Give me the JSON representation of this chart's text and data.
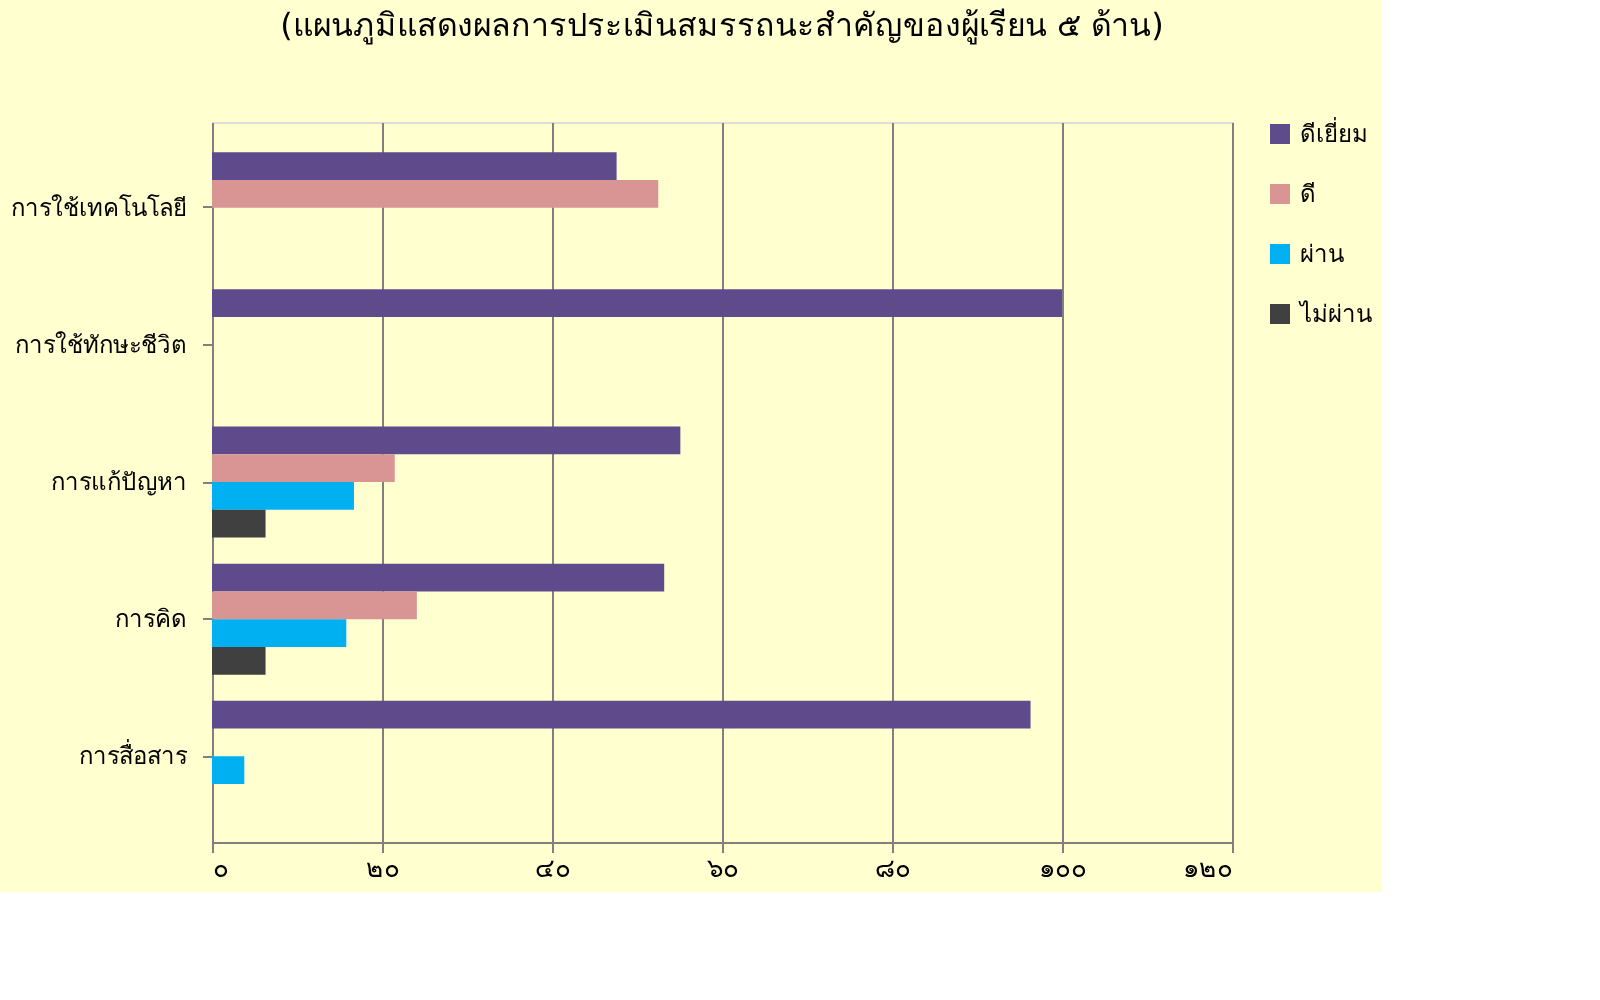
{
  "chart_data": {
    "type": "bar",
    "orientation": "horizontal",
    "title": "(แผนภูมิแสดงผลการประเมินสมรรถนะสำคัญของผู้เรียน ๕ ด้าน)",
    "categories": [
      "การใช้เทคโนโลยี",
      "การใช้ทักษะชีวิต",
      "การแก้ปัญหา",
      "การคิด",
      "การสื่อสาร"
    ],
    "series": [
      {
        "name": "ดีเยี่ยม",
        "color": "#5f4a8b",
        "values": [
          47.6,
          100,
          55.1,
          53.2,
          96.3
        ]
      },
      {
        "name": "ดี",
        "color": "#d99594",
        "values": [
          52.5,
          null,
          21.5,
          24.1,
          null
        ]
      },
      {
        "name": "ผ่าน",
        "color": "#00b0f0",
        "values": [
          null,
          null,
          16.7,
          15.8,
          3.8
        ]
      },
      {
        "name": "ไม่ผ่าน",
        "color": "#404040",
        "values": [
          null,
          null,
          6.3,
          6.3,
          null
        ]
      }
    ],
    "xlim": [
      0,
      120
    ],
    "xticks": [
      {
        "value": 0,
        "label": "๐"
      },
      {
        "value": 20,
        "label": "๒๐"
      },
      {
        "value": 40,
        "label": "๔๐"
      },
      {
        "value": 60,
        "label": "๖๐"
      },
      {
        "value": 80,
        "label": "๘๐"
      },
      {
        "value": 100,
        "label": "๑๐๐"
      },
      {
        "value": 120,
        "label": "๑๒๐"
      }
    ],
    "grid": "x",
    "legend": "right"
  }
}
